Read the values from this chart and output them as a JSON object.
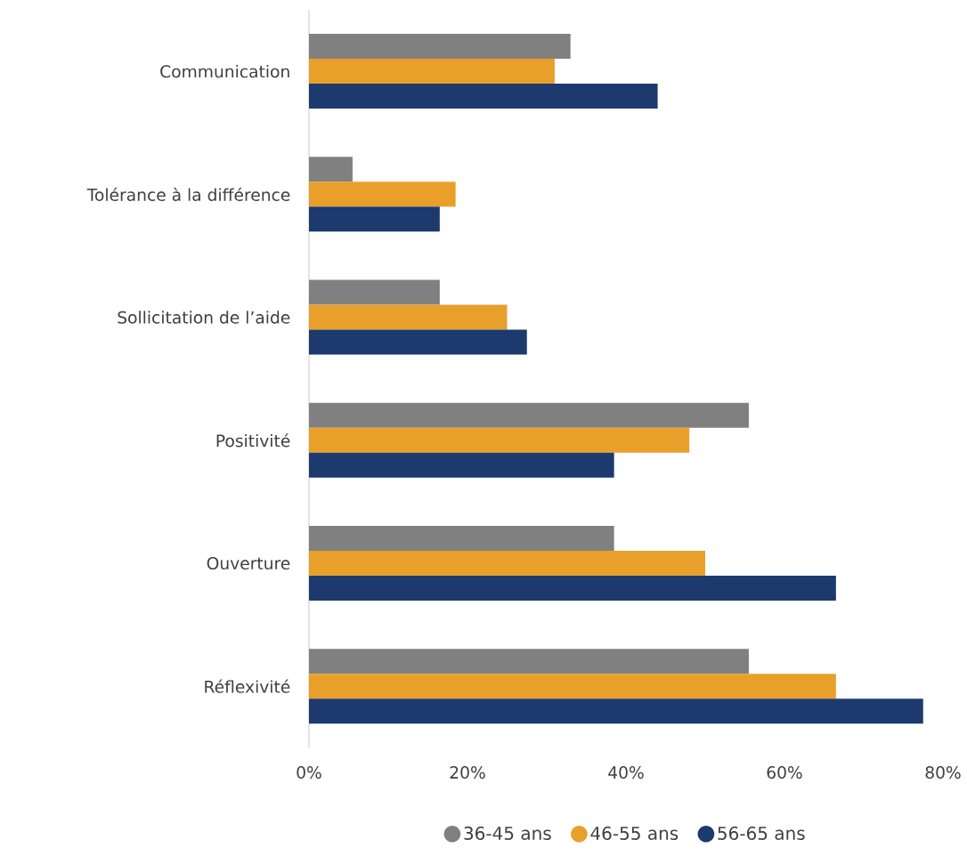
{
  "chart_data": {
    "type": "bar",
    "orientation": "horizontal",
    "categories": [
      "Communication",
      "Tolérance à la différence",
      "Sollicitation de l’aide",
      "Positivité",
      "Ouverture",
      "Réflexivité"
    ],
    "series": [
      {
        "name": "36-45 ans",
        "color": "#808080",
        "values": [
          33,
          5.5,
          16.5,
          55.5,
          38.5,
          55.5
        ]
      },
      {
        "name": "46-55 ans",
        "color": "#e8a02a",
        "values": [
          31,
          18.5,
          25,
          48,
          50,
          66.5
        ]
      },
      {
        "name": "56-65 ans",
        "color": "#1c3a6e",
        "values": [
          44,
          16.5,
          27.5,
          38.5,
          66.5,
          77.5
        ]
      }
    ],
    "xlim": [
      0,
      80
    ],
    "xticks": [
      {
        "value": 0,
        "label": "0%"
      },
      {
        "value": 20,
        "label": "20%"
      },
      {
        "value": 40,
        "label": "40%"
      },
      {
        "value": 60,
        "label": "60%"
      },
      {
        "value": 80,
        "label": "80%"
      }
    ],
    "legend": "bottom",
    "marker": "circle"
  }
}
